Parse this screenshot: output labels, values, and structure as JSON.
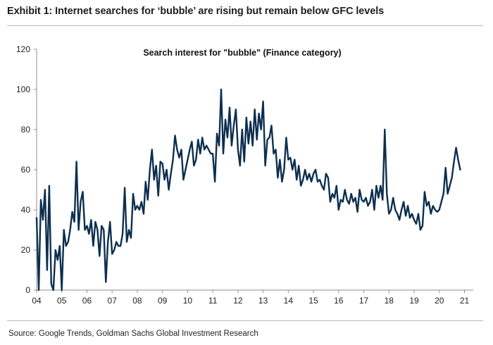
{
  "exhibit_title": "Exhibit 1: Internet searches for ‘bubble’ are rising but remain below GFC levels",
  "source": "Source: Google Trends, Goldman Sachs Global Investment Research",
  "colors": {
    "line": "#0d2f4f",
    "axis": "#8c8c8c",
    "text": "#222222"
  },
  "chart_data": {
    "type": "line",
    "title": "Search interest for \"bubble\" (Finance category)",
    "xlabel": "",
    "ylabel": "",
    "ylim": [
      0,
      120
    ],
    "yticks": [
      0,
      20,
      40,
      60,
      80,
      100,
      120
    ],
    "xlim": [
      2004.0,
      2021.35
    ],
    "xticks": [
      {
        "value": 2004.0,
        "label": "04"
      },
      {
        "value": 2005.0,
        "label": "05"
      },
      {
        "value": 2006.0,
        "label": "06"
      },
      {
        "value": 2007.0,
        "label": "07"
      },
      {
        "value": 2008.0,
        "label": "08"
      },
      {
        "value": 2009.0,
        "label": "09"
      },
      {
        "value": 2010.0,
        "label": "10"
      },
      {
        "value": 2011.0,
        "label": "11"
      },
      {
        "value": 2012.0,
        "label": "12"
      },
      {
        "value": 2013.0,
        "label": "13"
      },
      {
        "value": 2014.0,
        "label": "14"
      },
      {
        "value": 2015.0,
        "label": "15"
      },
      {
        "value": 2016.0,
        "label": "16"
      },
      {
        "value": 2017.0,
        "label": "17"
      },
      {
        "value": 2018.0,
        "label": "18"
      },
      {
        "value": 2019.0,
        "label": "19"
      },
      {
        "value": 2020.0,
        "label": "20"
      },
      {
        "value": 2021.0,
        "label": "21"
      }
    ],
    "grid": false,
    "series": [
      {
        "name": "Search interest for \"bubble\"",
        "start_year": 2004.0,
        "step_years": 0.08333,
        "values": [
          36,
          0,
          45,
          35,
          50,
          10,
          52,
          3,
          0,
          20,
          15,
          22,
          0,
          30,
          22,
          24,
          30,
          39,
          34,
          64,
          30,
          44,
          49,
          30,
          32,
          28,
          35,
          22,
          34,
          30,
          17,
          32,
          30,
          4,
          24,
          34,
          18,
          20,
          24,
          22,
          22,
          28,
          51,
          24,
          30,
          26,
          48,
          40,
          42,
          40,
          44,
          38,
          54,
          45,
          60,
          70,
          55,
          62,
          47,
          64,
          63,
          55,
          60,
          50,
          58,
          65,
          77,
          70,
          66,
          70,
          55,
          60,
          65,
          70,
          74,
          62,
          65,
          75,
          68,
          76,
          70,
          72,
          70,
          68,
          68,
          54,
          78,
          72,
          100,
          68,
          85,
          76,
          91,
          72,
          82,
          90,
          70,
          62,
          80,
          64,
          86,
          73,
          84,
          72,
          90,
          75,
          88,
          80,
          94,
          62,
          75,
          76,
          82,
          68,
          70,
          56,
          65,
          54,
          60,
          76,
          65,
          66,
          60,
          65,
          55,
          62,
          52,
          55,
          60,
          55,
          58,
          54,
          58,
          60,
          54,
          55,
          52,
          50,
          58,
          56,
          44,
          48,
          46,
          52,
          40,
          45,
          44,
          50,
          45,
          43,
          48,
          44,
          46,
          39,
          50,
          45,
          44,
          46,
          42,
          44,
          50,
          40,
          52,
          46,
          52,
          45,
          80,
          48,
          38,
          40,
          46,
          40,
          38,
          35,
          40,
          44,
          37,
          42,
          36,
          38,
          35,
          33,
          38,
          30,
          32,
          49,
          42,
          44,
          38,
          42,
          40,
          39,
          40,
          44,
          48,
          61,
          48,
          52,
          56,
          64,
          71,
          65,
          60
        ]
      }
    ]
  }
}
